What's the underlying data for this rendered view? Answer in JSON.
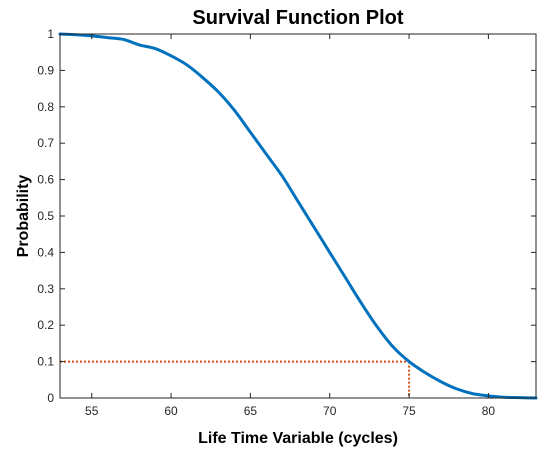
{
  "chart_data": {
    "type": "line",
    "title": "Survival Function Plot",
    "xlabel": "Life Time Variable (cycles)",
    "ylabel": "Probability",
    "xlim": [
      53,
      83
    ],
    "ylim": [
      0,
      1
    ],
    "xticks": [
      55,
      60,
      65,
      70,
      75,
      80
    ],
    "yticks": [
      0,
      0.1,
      0.2,
      0.3,
      0.4,
      0.5,
      0.6,
      0.7,
      0.8,
      0.9,
      1
    ],
    "ytick_labels": [
      "0",
      "0.1",
      "0.2",
      "0.3",
      "0.4",
      "0.5",
      "0.6",
      "0.7",
      "0.8",
      "0.9",
      "1"
    ],
    "grid": false,
    "series": [
      {
        "color": "#0072BD",
        "style": "solid",
        "x": [
          53,
          54,
          55,
          56,
          57,
          58,
          59,
          60,
          61,
          62,
          63,
          64,
          65,
          66,
          67,
          68,
          69,
          70,
          71,
          72,
          73,
          74,
          75,
          76,
          77,
          78,
          79,
          80,
          81,
          82,
          83
        ],
        "y": [
          1.0,
          0.998,
          0.995,
          0.99,
          0.985,
          0.97,
          0.96,
          0.94,
          0.915,
          0.88,
          0.84,
          0.79,
          0.73,
          0.67,
          0.61,
          0.54,
          0.47,
          0.4,
          0.33,
          0.26,
          0.195,
          0.14,
          0.1,
          0.07,
          0.045,
          0.025,
          0.012,
          0.006,
          0.002,
          0.001,
          0.0
        ]
      }
    ],
    "reference_lines": {
      "color": "#D95319",
      "style": "dotted",
      "x": 75,
      "y": 0.1
    }
  }
}
